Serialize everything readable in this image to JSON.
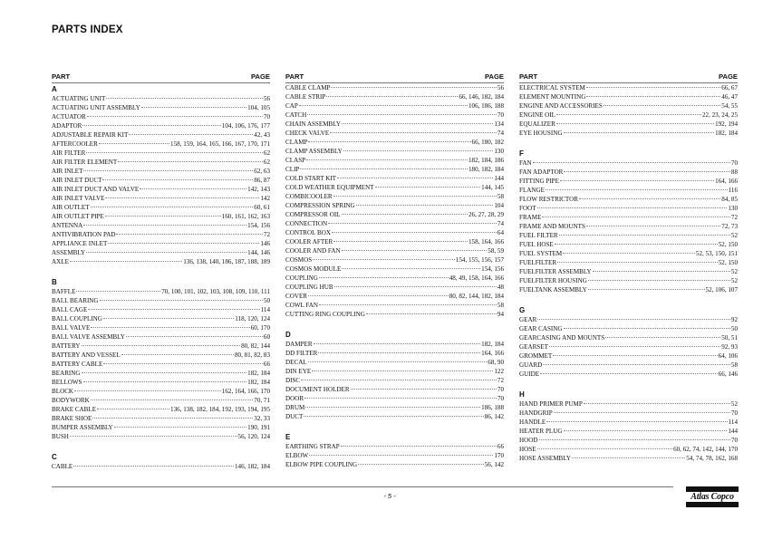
{
  "title": "PARTS INDEX",
  "header": {
    "part": "PART",
    "page": "PAGE"
  },
  "columns": [
    {
      "groups": [
        {
          "letter": "A",
          "entries": [
            {
              "part": "ACTUATING UNIT",
              "pages": "56"
            },
            {
              "part": "ACTUATING UNIT ASSEMBLY",
              "pages": "104, 105"
            },
            {
              "part": "ACTUATOR",
              "pages": "70"
            },
            {
              "part": "ADAPTOR",
              "pages": "104, 106, 176, 177"
            },
            {
              "part": "ADJUSTABLE REPAIR KIT",
              "pages": "42, 43"
            },
            {
              "part": "AFTERCOOLER",
              "pages": "158, 159, 164, 165, 166, 167, 170, 171"
            },
            {
              "part": "AIR FILTER",
              "pages": "62"
            },
            {
              "part": "AIR FILTER ELEMENT",
              "pages": "62"
            },
            {
              "part": "AIR INLET",
              "pages": "62, 63"
            },
            {
              "part": "AIR INLET DUCT",
              "pages": "86, 87"
            },
            {
              "part": "AIR INLET DUCT AND VALVE",
              "pages": "142, 143"
            },
            {
              "part": "AIR INLET VALVE",
              "pages": "142"
            },
            {
              "part": "AIR OUTLET",
              "pages": "60, 61"
            },
            {
              "part": "AIR OUTLET PIPE",
              "pages": "160, 161, 162, 163"
            },
            {
              "part": "ANTENNA",
              "pages": "154, 156"
            },
            {
              "part": "ANTIVIBRATION PAD",
              "pages": "72"
            },
            {
              "part": "APPLIANCE INLET",
              "pages": "146"
            },
            {
              "part": "ASSEMBLY",
              "pages": "144, 146"
            },
            {
              "part": "AXLE",
              "pages": "136, 138, 140, 186, 187, 188, 189"
            }
          ]
        },
        {
          "letter": "B",
          "entries": [
            {
              "part": "BAFFLE",
              "pages": "70, 100, 101, 102, 103, 108, 109, 110, 111"
            },
            {
              "part": "BALL BEARING",
              "pages": "50"
            },
            {
              "part": "BALL CAGE",
              "pages": "114"
            },
            {
              "part": "BALL COUPLING",
              "pages": "118, 120, 124"
            },
            {
              "part": "BALL VALVE",
              "pages": "60, 170"
            },
            {
              "part": "BALL VALVE ASSEMBLY",
              "pages": "60"
            },
            {
              "part": "BATTERY",
              "pages": "80, 82, 144"
            },
            {
              "part": "BATTERY AND VESSEL",
              "pages": "80, 81, 82, 83"
            },
            {
              "part": "BATTERY CABLE",
              "pages": "66"
            },
            {
              "part": "BEARING",
              "pages": "182, 184"
            },
            {
              "part": "BELLOWS",
              "pages": "182, 184"
            },
            {
              "part": "BLOCK",
              "pages": "162, 164, 166, 170"
            },
            {
              "part": "BODYWORK",
              "pages": "70, 71"
            },
            {
              "part": "BRAKE CABLE",
              "pages": "136, 138, 182, 184, 192, 193, 194, 195"
            },
            {
              "part": "BRAKE SHOE",
              "pages": "32, 33"
            },
            {
              "part": "BUMPER ASSEMBLY",
              "pages": "190, 191"
            },
            {
              "part": "BUSH",
              "pages": "56, 120, 124"
            }
          ]
        },
        {
          "letter": "C",
          "entries": [
            {
              "part": "CABLE",
              "pages": "146, 182, 184"
            }
          ]
        }
      ]
    },
    {
      "groups": [
        {
          "letter": "",
          "entries": [
            {
              "part": "CABLE CLAMP",
              "pages": "56"
            },
            {
              "part": "CABLE STRIP",
              "pages": "66,  146, 182, 184"
            },
            {
              "part": "CAP",
              "pages": "106, 186, 188"
            },
            {
              "part": "CATCH",
              "pages": "70"
            },
            {
              "part": "CHAIN ASSEMBLY",
              "pages": "134"
            },
            {
              "part": "CHECK VALVE",
              "pages": "74"
            },
            {
              "part": "CLAMP",
              "pages": "66, 180, 182"
            },
            {
              "part": "CLAMP ASSEMBLY",
              "pages": "130"
            },
            {
              "part": "CLASP",
              "pages": "182, 184, 186"
            },
            {
              "part": "CLIP",
              "pages": "180, 182, 184"
            },
            {
              "part": "COLD START KIT",
              "pages": "144"
            },
            {
              "part": "COLD WEATHER EQUIPMENT",
              "pages": "144, 145"
            },
            {
              "part": "COMBICOOLER",
              "pages": "58"
            },
            {
              "part": "COMPRESSION SPRING",
              "pages": "104"
            },
            {
              "part": "COMPRESSOR OIL",
              "pages": "26, 27, 28, 29"
            },
            {
              "part": "CONNECTION",
              "pages": "74"
            },
            {
              "part": "CONTROL BOX",
              "pages": "64"
            },
            {
              "part": "COOLER AFTER",
              "pages": "158, 164, 166"
            },
            {
              "part": "COOLER AND FAN",
              "pages": "58, 59"
            },
            {
              "part": "COSMOS",
              "pages": "154, 155, 156, 157"
            },
            {
              "part": "COSMOS MODULE",
              "pages": "154, 156"
            },
            {
              "part": "COUPLING",
              "pages": "48, 49, 158, 164, 166"
            },
            {
              "part": "COUPLING HUB",
              "pages": "48"
            },
            {
              "part": "COVER",
              "pages": "80, 82, 144, 182, 184"
            },
            {
              "part": "COWL FAN",
              "pages": "58"
            },
            {
              "part": "CUTTING RING COUPLING",
              "pages": "94"
            }
          ]
        },
        {
          "letter": "D",
          "entries": [
            {
              "part": "DAMPER",
              "pages": "182, 184"
            },
            {
              "part": "DD FILTER",
              "pages": "164, 166"
            },
            {
              "part": "DECAL",
              "pages": "68,  90"
            },
            {
              "part": "DIN EYE",
              "pages": "122"
            },
            {
              "part": "DISC",
              "pages": "72"
            },
            {
              "part": "DOCUMENT HOLDER",
              "pages": "70"
            },
            {
              "part": "DOOR",
              "pages": "70"
            },
            {
              "part": "DRUM",
              "pages": "186, 188"
            },
            {
              "part": "DUCT",
              "pages": "86, 142"
            }
          ]
        },
        {
          "letter": "E",
          "entries": [
            {
              "part": "EARTHING STRAP",
              "pages": "66"
            },
            {
              "part": "ELBOW",
              "pages": "170"
            },
            {
              "part": "ELBOW PIPE COUPLING",
              "pages": "56, 142"
            }
          ]
        }
      ]
    },
    {
      "groups": [
        {
          "letter": "",
          "entries": [
            {
              "part": "ELECTRICAL SYSTEM",
              "pages": "66, 67"
            },
            {
              "part": "ELEMENT MOUNTING",
              "pages": "46, 47"
            },
            {
              "part": "ENGINE AND ACCESSORIES",
              "pages": "54, 55"
            },
            {
              "part": "ENGINE OIL",
              "pages": "22, 23, 24, 25"
            },
            {
              "part": "EQUALIZER",
              "pages": "192, 194"
            },
            {
              "part": "EYE HOUSING",
              "pages": "182, 184"
            }
          ]
        },
        {
          "letter": "F",
          "entries": [
            {
              "part": "FAN",
              "pages": "70"
            },
            {
              "part": "FAN ADAPTOR",
              "pages": "88"
            },
            {
              "part": "FITTING PIPE",
              "pages": "164, 166"
            },
            {
              "part": "FLANGE",
              "pages": "116"
            },
            {
              "part": "FLOW RESTRICTOR",
              "pages": "84, 85"
            },
            {
              "part": "FOOT",
              "pages": "130"
            },
            {
              "part": "FRAME",
              "pages": "72"
            },
            {
              "part": "FRAME AND MOUNTS",
              "pages": "72, 73"
            },
            {
              "part": "FUEL FILTER",
              "pages": "52"
            },
            {
              "part": "FUEL HOSE",
              "pages": "52, 150"
            },
            {
              "part": "FUEL SYSTEM",
              "pages": "52, 53, 150, 151"
            },
            {
              "part": "FUELFILTER",
              "pages": "52, 150"
            },
            {
              "part": "FUELFILTER ASSEMBLY",
              "pages": "52"
            },
            {
              "part": "FUELFILTER HOUSING",
              "pages": "52"
            },
            {
              "part": "FUELTANK ASSEMBLY",
              "pages": "52, 106, 107"
            }
          ]
        },
        {
          "letter": "G",
          "entries": [
            {
              "part": "GEAR",
              "pages": "92"
            },
            {
              "part": "GEAR CASING",
              "pages": "50"
            },
            {
              "part": "GEARCASING AND MOUNTS",
              "pages": "50, 51"
            },
            {
              "part": "GEARSET",
              "pages": "92, 93"
            },
            {
              "part": "GROMMET",
              "pages": "64, 106"
            },
            {
              "part": "GUARD",
              "pages": "58"
            },
            {
              "part": "GUIDE",
              "pages": "66, 146"
            }
          ]
        },
        {
          "letter": "H",
          "entries": [
            {
              "part": "HAND PRIMER PUMP",
              "pages": "52"
            },
            {
              "part": "HANDGRIP",
              "pages": "70"
            },
            {
              "part": "HANDLE",
              "pages": "114"
            },
            {
              "part": "HEATER PLUG",
              "pages": "144"
            },
            {
              "part": "HOOD",
              "pages": "70"
            },
            {
              "part": "HOSE",
              "pages": "60, 62, 74, 142, 144, 170"
            },
            {
              "part": "HOSE ASSEMBLY",
              "pages": "54, 74, 78, 162, 168"
            }
          ]
        }
      ]
    }
  ],
  "footer": {
    "page_number": "- 5 -",
    "logo": "Atlas Copco"
  }
}
